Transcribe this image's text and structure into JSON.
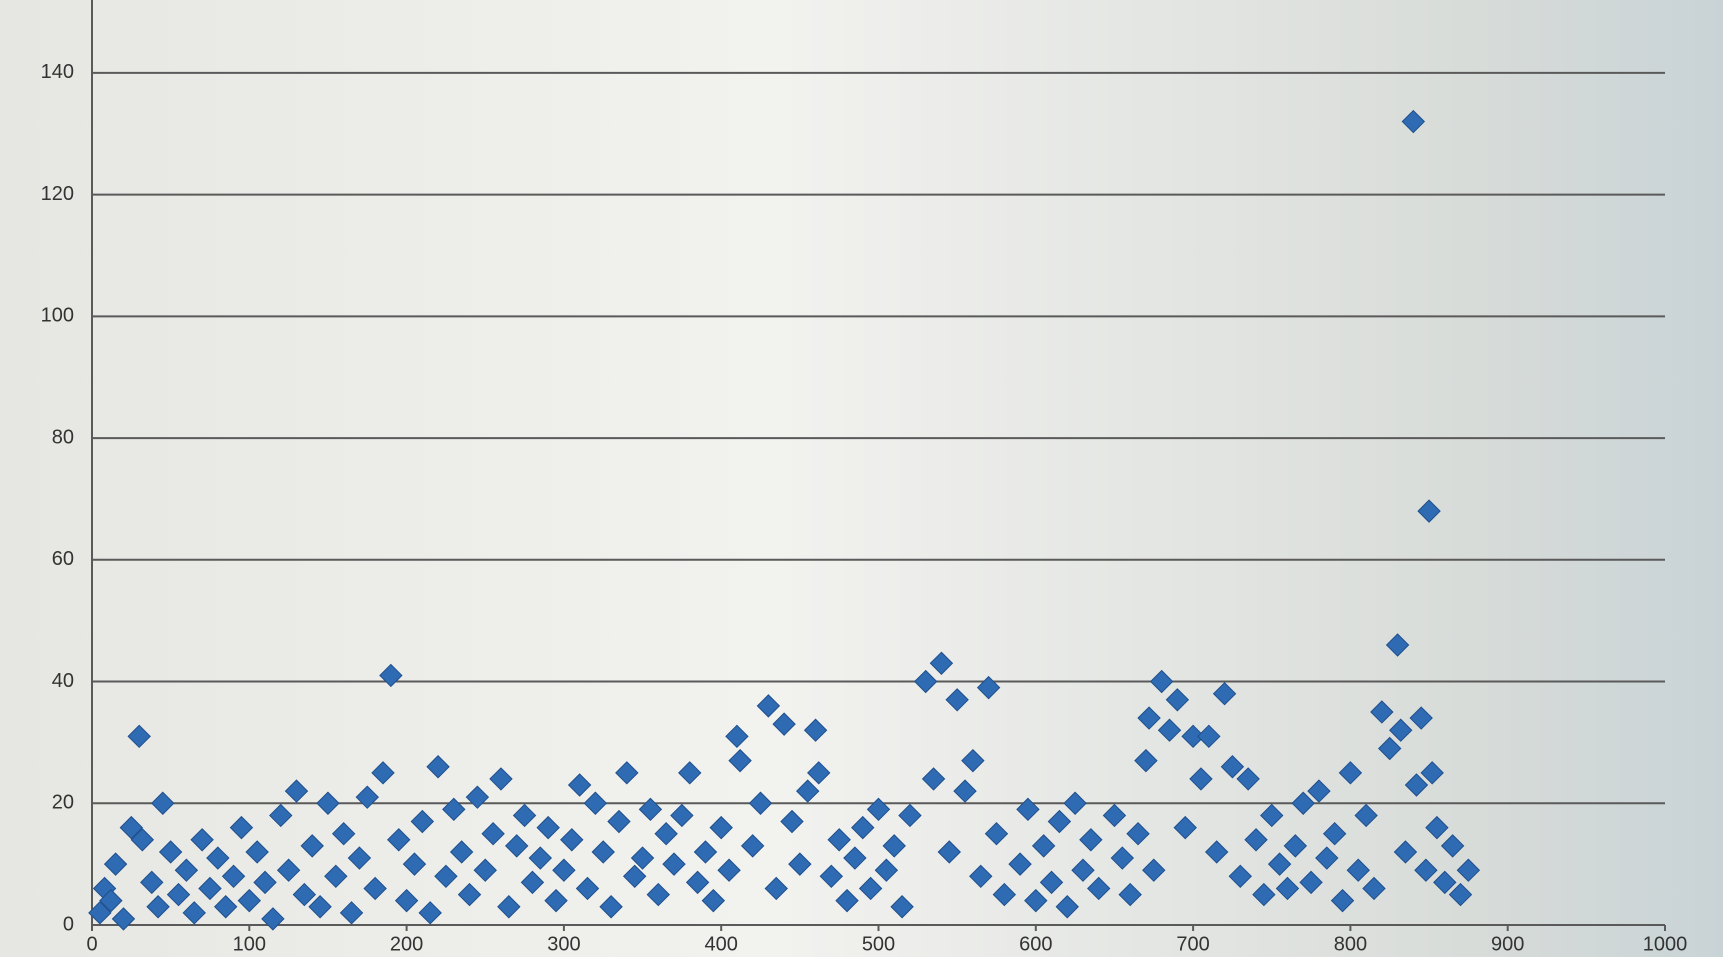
{
  "chart_data": {
    "type": "scatter",
    "x": [
      5,
      8,
      12,
      15,
      20,
      25,
      30,
      32,
      38,
      42,
      45,
      50,
      55,
      60,
      65,
      70,
      75,
      80,
      85,
      90,
      95,
      100,
      105,
      110,
      115,
      120,
      125,
      130,
      135,
      140,
      145,
      150,
      155,
      160,
      165,
      170,
      175,
      180,
      185,
      190,
      195,
      200,
      205,
      210,
      215,
      220,
      225,
      230,
      235,
      240,
      245,
      250,
      255,
      260,
      265,
      270,
      275,
      280,
      285,
      290,
      295,
      300,
      305,
      310,
      315,
      320,
      325,
      330,
      335,
      340,
      345,
      350,
      355,
      360,
      365,
      370,
      375,
      380,
      385,
      390,
      395,
      400,
      405,
      410,
      412,
      420,
      425,
      430,
      435,
      440,
      445,
      450,
      455,
      460,
      462,
      470,
      475,
      480,
      485,
      490,
      495,
      500,
      505,
      510,
      515,
      520,
      530,
      535,
      540,
      545,
      550,
      555,
      560,
      565,
      570,
      575,
      580,
      590,
      595,
      600,
      605,
      610,
      615,
      620,
      625,
      630,
      635,
      640,
      650,
      655,
      660,
      665,
      670,
      672,
      675,
      680,
      685,
      690,
      695,
      700,
      705,
      710,
      715,
      720,
      725,
      730,
      735,
      740,
      745,
      750,
      755,
      760,
      765,
      770,
      775,
      780,
      785,
      790,
      795,
      800,
      805,
      810,
      815,
      820,
      825,
      830,
      832,
      835,
      840,
      842,
      845,
      848,
      850,
      852,
      855,
      860,
      865,
      870,
      875
    ],
    "values": [
      2,
      6,
      4,
      10,
      1,
      16,
      31,
      14,
      7,
      3,
      20,
      12,
      5,
      9,
      2,
      14,
      6,
      11,
      3,
      8,
      16,
      4,
      12,
      7,
      1,
      18,
      9,
      22,
      5,
      13,
      3,
      20,
      8,
      15,
      2,
      11,
      21,
      6,
      25,
      41,
      14,
      4,
      10,
      17,
      2,
      26,
      8,
      19,
      12,
      5,
      21,
      9,
      15,
      24,
      3,
      13,
      18,
      7,
      11,
      16,
      4,
      9,
      14,
      23,
      6,
      20,
      12,
      3,
      17,
      25,
      8,
      11,
      19,
      5,
      15,
      10,
      18,
      25,
      7,
      12,
      4,
      16,
      9,
      31,
      27,
      13,
      20,
      36,
      6,
      33,
      17,
      10,
      22,
      32,
      25,
      8,
      14,
      4,
      11,
      16,
      6,
      19,
      9,
      13,
      3,
      18,
      40,
      24,
      43,
      12,
      37,
      22,
      27,
      8,
      39,
      15,
      5,
      10,
      19,
      4,
      13,
      7,
      17,
      3,
      20,
      9,
      14,
      6,
      18,
      11,
      5,
      15,
      27,
      34,
      9,
      40,
      32,
      37,
      16,
      31,
      24,
      31,
      12,
      38,
      26,
      8,
      24,
      14,
      5,
      18,
      10,
      6,
      13,
      20,
      7,
      22,
      11,
      15,
      4,
      25,
      9,
      18,
      6,
      35,
      29,
      46,
      32,
      12,
      132,
      23,
      34,
      9,
      68,
      25,
      16,
      7,
      13,
      5,
      9
    ],
    "color": "#2f6bb3",
    "xlim": [
      0,
      1000
    ],
    "xticks": [
      0,
      100,
      200,
      300,
      400,
      500,
      600,
      700,
      800,
      900,
      1000
    ],
    "ylim": [
      0,
      150
    ],
    "yticks": [
      0,
      20,
      40,
      60,
      80,
      100,
      120,
      140
    ],
    "grid": true
  }
}
